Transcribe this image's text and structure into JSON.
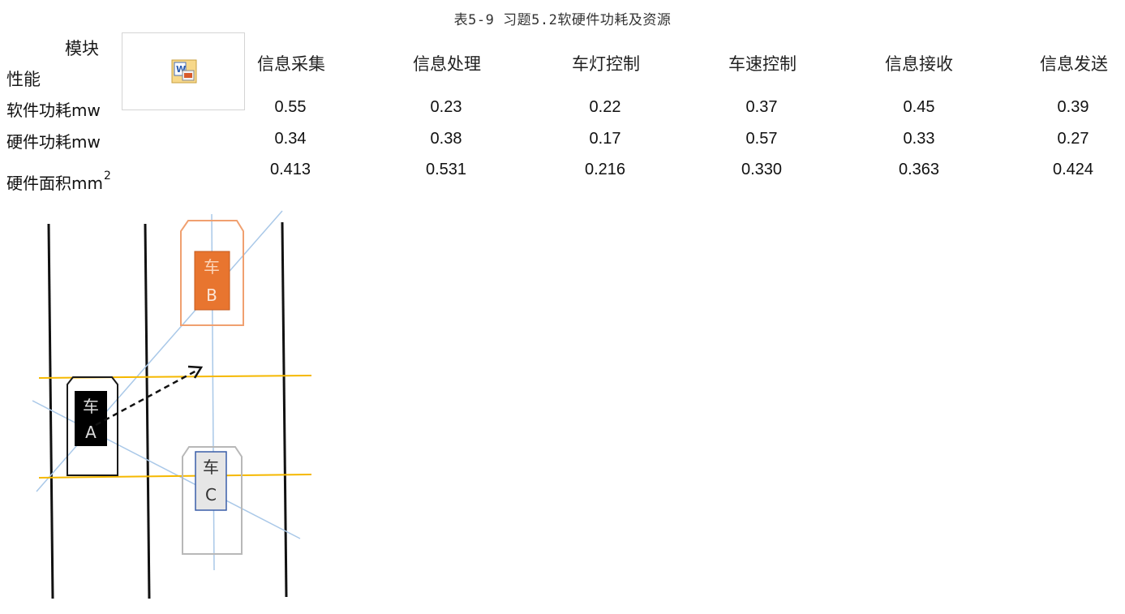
{
  "caption": "表5-9 习题5.2软硬件功耗及资源",
  "table": {
    "corner_top": "模块",
    "corner_bottom": "性能",
    "corner_icon": "word-document-icon",
    "columns": [
      "信息采集",
      "信息处理",
      "车灯控制",
      "车速控制",
      "信息接收",
      "信息发送"
    ],
    "rows": [
      {
        "label": "软件功耗mw",
        "sup": "",
        "values": [
          "0.55",
          "0.23",
          "0.22",
          "0.37",
          "0.45",
          "0.39"
        ]
      },
      {
        "label": "硬件功耗mw",
        "sup": "",
        "values": [
          "0.34",
          "0.38",
          "0.17",
          "0.57",
          "0.33",
          "0.27"
        ]
      },
      {
        "label": "硬件面积mm",
        "sup": "2",
        "values": [
          "0.413",
          "0.531",
          "0.216",
          "0.330",
          "0.363",
          "0.424"
        ]
      }
    ]
  },
  "diagram": {
    "car_a": {
      "line1": "车",
      "line2": "A",
      "fill": "#000000",
      "outline": "#1a1a1a"
    },
    "car_b": {
      "line1": "车",
      "line2": "B",
      "fill": "#e8752f",
      "outline": "#f0a070"
    },
    "car_c": {
      "line1": "车",
      "line2": "C",
      "fill": "#e6e6e6",
      "outline": "#b8b8b8",
      "inner_border": "#3a5fa8"
    },
    "lane_color": "#111111",
    "horizontal_line_color": "#f5b800",
    "guide_line_color": "#a9c8e8"
  }
}
